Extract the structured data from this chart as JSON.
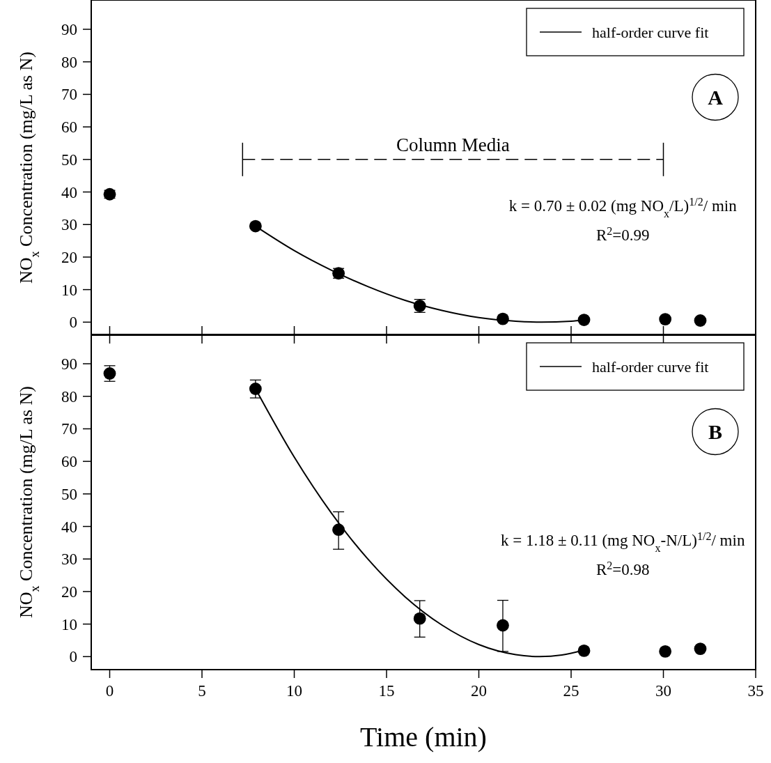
{
  "chart_data": [
    {
      "type": "scatter",
      "title": "A",
      "ylabel": "NO$_{x}$ Concentration (mg/L as N)",
      "xlim": [
        -1,
        35
      ],
      "xticks": [
        0,
        5,
        10,
        15,
        20,
        25,
        30,
        35
      ],
      "ylim": [
        -4,
        99
      ],
      "yticks": [
        0,
        10,
        20,
        30,
        40,
        50,
        60,
        70,
        80,
        90
      ],
      "tick_labels": "y",
      "legend": "top right",
      "marker": "circle",
      "annotations": [
        {
          "text": "Column Media",
          "x": 18.6,
          "y": 50
        },
        "k = 0.70 ± 0.02 (mg NO$_{x}$/L)$^{1/2}$/ min",
        "R$^{2}$=0.99"
      ],
      "series": [
        {
          "type": "scatter",
          "color": "#000000",
          "x": [
            0,
            7.9,
            12.4,
            16.8,
            21.3,
            25.7,
            30.1,
            32
          ],
          "values": [
            39.3,
            29.5,
            15,
            5,
            1,
            0.7,
            0.9,
            0.5
          ],
          "errors": [
            1.2,
            null,
            1.5,
            2,
            null,
            null,
            null,
            null
          ]
        },
        {
          "type": "line",
          "name": "half-order curve fit",
          "color": "#000000",
          "marker": "none",
          "line_style": "solid",
          "x": [
            7.9,
            10,
            12,
            14,
            16,
            18,
            20,
            22,
            23.4,
            25,
            25.7
          ],
          "values": [
            29.5,
            22,
            16,
            10.9,
            6.7,
            3.6,
            1.4,
            0.3,
            0,
            0.3,
            0.6
          ]
        },
        {
          "type": "line",
          "color": "#000000",
          "marker": "none",
          "line_style": "dashed",
          "x": [
            7.2,
            30
          ],
          "values": [
            50,
            50
          ]
        }
      ]
    },
    {
      "type": "scatter",
      "title": "B",
      "xlabel": "Time (min)",
      "ylabel": "NO$_{x}$ Concentration (mg/L as N)",
      "xlim": [
        -1,
        35
      ],
      "xticks": [
        0,
        5,
        10,
        15,
        20,
        25,
        30,
        35
      ],
      "ylim": [
        -4,
        99
      ],
      "yticks": [
        0,
        10,
        20,
        30,
        40,
        50,
        60,
        70,
        80,
        90
      ],
      "legend": "top right",
      "marker": "circle",
      "annotations": [
        "k = 1.18 ± 0.11 (mg NO$_{x}$-N/L)$^{1/2}$/ min",
        "R$^{2}$=0.98"
      ],
      "series": [
        {
          "type": "scatter",
          "color": "#000000",
          "x": [
            0,
            7.9,
            12.4,
            16.8,
            21.3,
            25.7,
            30.1,
            32
          ],
          "values": [
            87,
            82.3,
            39,
            11.7,
            9.6,
            1.8,
            1.6,
            2.4
          ],
          "errors": [
            [
              84.6,
              89.4
            ],
            [
              79.5,
              85
            ],
            [
              33,
              44.5
            ],
            [
              6,
              17.2
            ],
            [
              1.6,
              17.3
            ],
            null,
            null,
            null
          ]
        },
        {
          "type": "line",
          "name": "half-order curve fit",
          "color": "#000000",
          "marker": "none",
          "line_style": "solid",
          "x": [
            7.9,
            10,
            12,
            14,
            16,
            18,
            20,
            22,
            23.3,
            24.5,
            25.7
          ],
          "values": [
            82.3,
            61.3,
            44.2,
            29.9,
            18.4,
            9.7,
            3.7,
            0.6,
            0,
            0.5,
            2
          ]
        }
      ]
    }
  ]
}
